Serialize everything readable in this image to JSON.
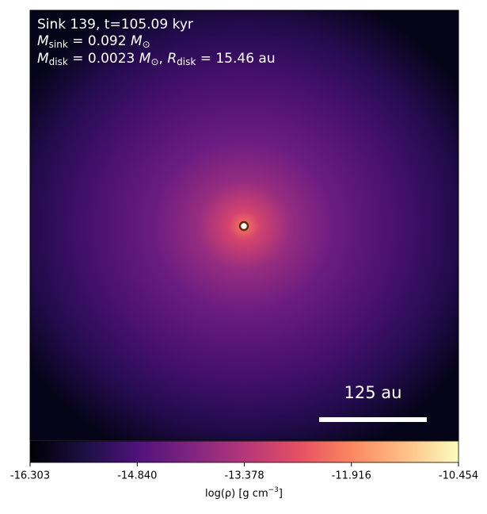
{
  "chart_data": {
    "type": "density-map",
    "annotation_lines": [
      [
        "Sink 139, t=105.09 kyr"
      ],
      [
        "M",
        "sink",
        " = 0.092 ",
        "M",
        "⊙"
      ],
      [
        "M",
        "disk",
        " = 0.0023 ",
        "M",
        "⊙",
        ", ",
        "R",
        "disk",
        " = 15.46 au"
      ]
    ],
    "scale_bar_label": "125 au",
    "colorbar_label": [
      "log(ρ) [g cm",
      "−3",
      "]"
    ],
    "clim": [
      -16.303,
      -10.454
    ],
    "cticks": [
      -16.303,
      {
        "value": -14.84,
        "label": "-14.840"
      },
      -13.378,
      -11.916,
      -10.454
    ]
  }
}
